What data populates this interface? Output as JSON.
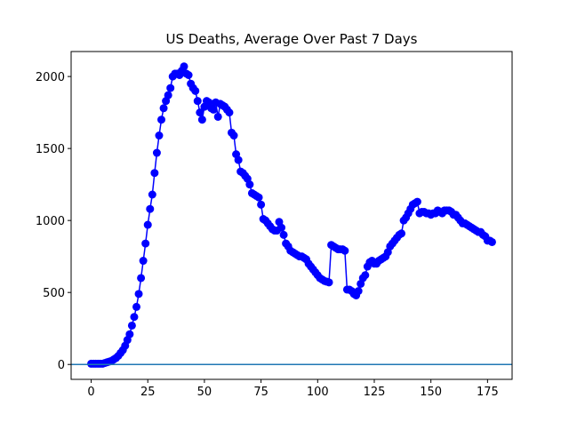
{
  "chart_data": {
    "type": "line",
    "title": "US Deaths, Average Over Past 7 Days",
    "x": [
      0,
      1,
      2,
      3,
      4,
      5,
      6,
      7,
      8,
      9,
      10,
      11,
      12,
      13,
      14,
      15,
      16,
      17,
      18,
      19,
      20,
      21,
      22,
      23,
      24,
      25,
      26,
      27,
      28,
      29,
      30,
      31,
      32,
      33,
      34,
      35,
      36,
      37,
      38,
      39,
      40,
      41,
      42,
      43,
      44,
      45,
      46,
      47,
      48,
      49,
      50,
      51,
      52,
      53,
      54,
      55,
      56,
      57,
      58,
      59,
      60,
      61,
      62,
      63,
      64,
      65,
      66,
      67,
      68,
      69,
      70,
      71,
      72,
      73,
      74,
      75,
      76,
      77,
      78,
      79,
      80,
      81,
      82,
      83,
      84,
      85,
      86,
      87,
      88,
      89,
      90,
      91,
      92,
      93,
      94,
      95,
      96,
      97,
      98,
      99,
      100,
      101,
      102,
      103,
      104,
      105,
      106,
      107,
      108,
      109,
      110,
      111,
      112,
      113,
      114,
      115,
      116,
      117,
      118,
      119,
      120,
      121,
      122,
      123,
      124,
      125,
      126,
      127,
      128,
      129,
      130,
      131,
      132,
      133,
      134,
      135,
      136,
      137,
      138,
      139,
      140,
      141,
      142,
      143,
      144,
      145,
      146,
      147,
      148,
      149,
      150,
      151,
      152,
      153,
      154,
      155,
      156,
      157,
      158,
      159,
      160,
      161,
      162,
      163,
      164,
      165,
      166,
      167,
      168,
      169,
      170,
      171,
      172,
      173,
      174,
      175,
      176,
      177
    ],
    "series": [
      {
        "color": "#0000ff",
        "values": [
          5,
          5,
          5,
          5,
          5,
          5,
          10,
          15,
          20,
          25,
          35,
          45,
          60,
          80,
          100,
          130,
          170,
          210,
          270,
          330,
          400,
          490,
          600,
          720,
          840,
          970,
          1080,
          1180,
          1330,
          1470,
          1590,
          1700,
          1780,
          1830,
          1870,
          1920,
          2000,
          2020,
          2020,
          2010,
          2040,
          2070,
          2020,
          2010,
          1950,
          1920,
          1900,
          1830,
          1750,
          1700,
          1790,
          1830,
          1820,
          1780,
          1770,
          1820,
          1720,
          1810,
          1800,
          1790,
          1770,
          1750,
          1610,
          1590,
          1460,
          1420,
          1340,
          1330,
          1310,
          1290,
          1250,
          1190,
          1180,
          1170,
          1160,
          1110,
          1010,
          1000,
          980,
          960,
          940,
          930,
          930,
          990,
          950,
          900,
          840,
          820,
          790,
          780,
          770,
          760,
          750,
          750,
          740,
          730,
          700,
          680,
          660,
          640,
          620,
          600,
          590,
          580,
          575,
          570,
          830,
          820,
          810,
          800,
          800,
          800,
          790,
          520,
          520,
          510,
          490,
          480,
          510,
          560,
          600,
          620,
          680,
          710,
          720,
          700,
          700,
          720,
          730,
          740,
          750,
          780,
          820,
          840,
          860,
          880,
          900,
          910,
          1000,
          1020,
          1050,
          1080,
          1110,
          1120,
          1130,
          1050,
          1060,
          1060,
          1050,
          1050,
          1040,
          1050,
          1050,
          1070,
          1060,
          1050,
          1070,
          1070,
          1070,
          1060,
          1040,
          1040,
          1020,
          1000,
          980,
          980,
          970,
          960,
          950,
          940,
          930,
          920,
          920,
          900,
          890,
          860,
          860,
          850
        ]
      }
    ],
    "hline": {
      "value": 0,
      "color": "#1f77b4"
    },
    "xlim": [
      -8.85,
      185.85
    ],
    "ylim": [
      -103.5,
      2173.5
    ],
    "xticks": [
      0,
      25,
      50,
      75,
      100,
      125,
      150,
      175
    ],
    "yticks": [
      0,
      500,
      1000,
      1500,
      2000
    ]
  }
}
